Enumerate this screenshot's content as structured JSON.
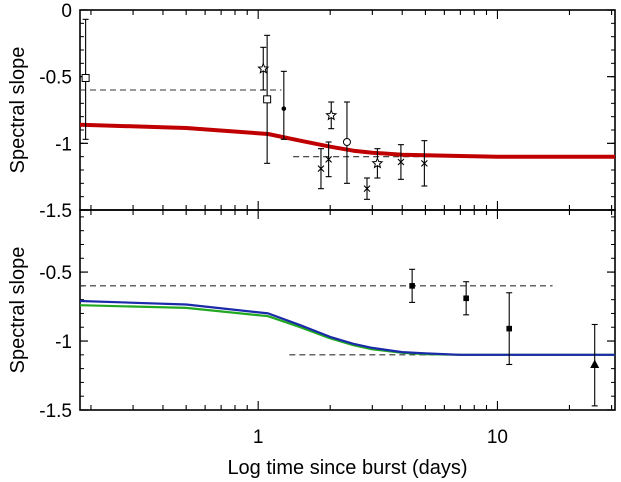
{
  "chart_data": [
    {
      "type": "scatter",
      "panel": "top",
      "ylabel": "Spectral slope",
      "xlabel": "",
      "xscale": "log",
      "xlim": [
        0.18,
        31
      ],
      "ylim": [
        -1.5,
        0
      ],
      "x_ticks": [],
      "y_ticks": [
        {
          "value": 0,
          "label": "0"
        },
        {
          "value": -0.5,
          "label": "-0.5"
        },
        {
          "value": -1,
          "label": "-1"
        },
        {
          "value": -1.5,
          "label": "-1.5"
        }
      ],
      "grid": false,
      "model_curves": [
        {
          "color": "#c00000",
          "width": 4,
          "x": [
            0.18,
            0.5,
            1.1,
            1.5,
            2.0,
            2.5,
            3.0,
            4.0,
            5.0,
            7.0,
            10.0,
            15.0,
            20.0,
            31.0
          ],
          "y": [
            -0.86,
            -0.885,
            -0.93,
            -0.98,
            -1.025,
            -1.055,
            -1.07,
            -1.085,
            -1.09,
            -1.095,
            -1.1,
            -1.1,
            -1.1,
            -1.1
          ]
        }
      ],
      "reference_lines": [
        {
          "y": -0.6,
          "x_range": [
            0.18,
            1.25
          ],
          "style": "dashed"
        },
        {
          "y": -1.1,
          "x_range": [
            1.4,
            31.0
          ],
          "style": "dashed"
        }
      ],
      "points": [
        {
          "marker": "open-square",
          "x": 0.19,
          "y": -0.51,
          "err_low": 0.46,
          "err_high": 0.44
        },
        {
          "marker": "open-square",
          "x": 1.09,
          "y": -0.67,
          "err_low": 0.48,
          "err_high": 0.48
        },
        {
          "marker": "star",
          "x": 1.05,
          "y": -0.44,
          "err_low": 0.16,
          "err_high": 0.16
        },
        {
          "marker": "filled-circle",
          "x": 1.28,
          "y": -0.74,
          "err_low": 0.23,
          "err_high": 0.28
        },
        {
          "marker": "star",
          "x": 2.02,
          "y": -0.79,
          "err_low": 0.1,
          "err_high": 0.1
        },
        {
          "marker": "open-circle",
          "x": 2.35,
          "y": -0.99,
          "err_low": 0.31,
          "err_high": 0.3
        },
        {
          "marker": "cross",
          "x": 1.83,
          "y": -1.19,
          "err_low": 0.15,
          "err_high": 0.15
        },
        {
          "marker": "cross",
          "x": 1.97,
          "y": -1.12,
          "err_low": 0.13,
          "err_high": 0.13
        },
        {
          "marker": "cross",
          "x": 2.85,
          "y": -1.34,
          "err_low": 0.08,
          "err_high": 0.08
        },
        {
          "marker": "star",
          "x": 3.15,
          "y": -1.15,
          "err_low": 0.11,
          "err_high": 0.11
        },
        {
          "marker": "cross",
          "x": 3.95,
          "y": -1.14,
          "err_low": 0.13,
          "err_high": 0.13
        },
        {
          "marker": "cross",
          "x": 4.95,
          "y": -1.15,
          "err_low": 0.17,
          "err_high": 0.17
        }
      ]
    },
    {
      "type": "scatter",
      "panel": "bottom",
      "ylabel": "Spectral slope",
      "xlabel": "Log time since burst (days)",
      "xscale": "log",
      "xlim": [
        0.18,
        31
      ],
      "ylim": [
        -1.5,
        -0.05
      ],
      "x_ticks": [
        {
          "value": 1,
          "label": "1"
        },
        {
          "value": 10,
          "label": "10"
        }
      ],
      "y_ticks": [
        {
          "value": -0.5,
          "label": "-0.5"
        },
        {
          "value": -1,
          "label": "-1"
        },
        {
          "value": -1.5,
          "label": "-1.5"
        }
      ],
      "grid": false,
      "model_curves": [
        {
          "color": "#21a821",
          "width": 2.2,
          "x": [
            0.18,
            0.5,
            1.1,
            1.5,
            2.0,
            2.5,
            3.0,
            4.0,
            5.0,
            7.0,
            10.0,
            15.0,
            20.0,
            31.0
          ],
          "y": [
            -0.74,
            -0.76,
            -0.82,
            -0.9,
            -0.98,
            -1.03,
            -1.06,
            -1.085,
            -1.095,
            -1.1,
            -1.1,
            -1.1,
            -1.1,
            -1.1
          ]
        },
        {
          "color": "#1a2aa8",
          "width": 2.2,
          "x": [
            0.18,
            0.5,
            1.1,
            1.5,
            2.0,
            2.5,
            3.0,
            4.0,
            5.0,
            7.0,
            10.0,
            15.0,
            20.0,
            31.0
          ],
          "y": [
            -0.71,
            -0.735,
            -0.8,
            -0.885,
            -0.97,
            -1.02,
            -1.05,
            -1.08,
            -1.09,
            -1.1,
            -1.1,
            -1.1,
            -1.1,
            -1.1
          ]
        }
      ],
      "reference_lines": [
        {
          "y": -0.6,
          "x_range": [
            0.18,
            17.0
          ],
          "style": "dashed"
        },
        {
          "y": -1.1,
          "x_range": [
            1.35,
            30.0
          ],
          "style": "dashed"
        }
      ],
      "points": [
        {
          "marker": "filled-square",
          "x": 4.4,
          "y": -0.6,
          "err_low": 0.12,
          "err_high": 0.12
        },
        {
          "marker": "filled-square",
          "x": 7.4,
          "y": -0.69,
          "err_low": 0.12,
          "err_high": 0.12
        },
        {
          "marker": "filled-square",
          "x": 11.2,
          "y": -0.91,
          "err_low": 0.26,
          "err_high": 0.26
        },
        {
          "marker": "filled-triangle",
          "x": 25.5,
          "y": -1.17,
          "err_low": 0.3,
          "err_high": 0.29
        }
      ]
    }
  ]
}
